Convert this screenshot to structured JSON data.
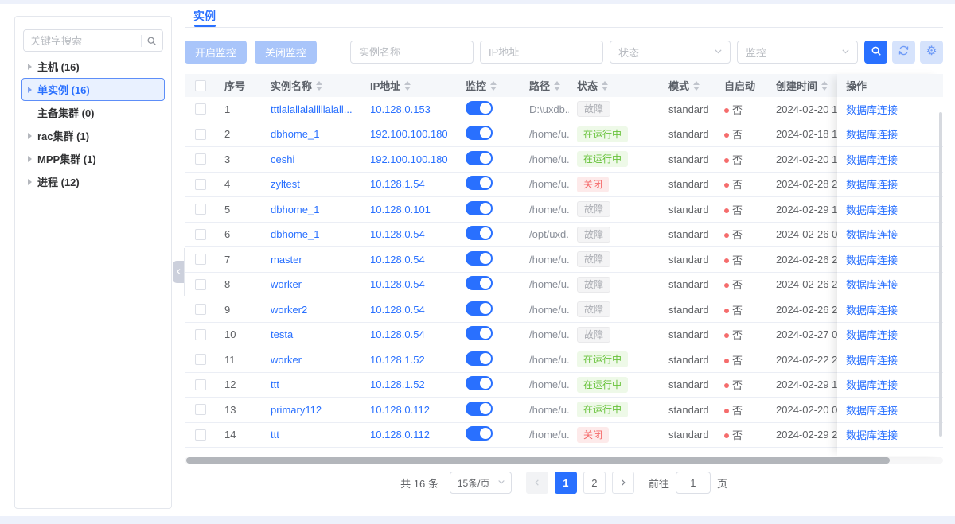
{
  "colors": {
    "accent": "#2970ff",
    "accent_soft": "#a9c5fa",
    "icon_btn_bg": "#d6e3fc",
    "header_bg": "#f5f7fa",
    "row_border": "#ebeef5",
    "selected_tree_bg": "#e9f1ff",
    "badge_info_text": "#aaacb2",
    "badge_success_text": "#67c23a",
    "badge_danger_text": "#f56c6c",
    "autostart_dot": "#f56c6c"
  },
  "sidebar": {
    "search_placeholder": "关键字搜索",
    "search_icon": "search-icon",
    "items": [
      {
        "key": "host",
        "label": "主机 (16)",
        "caret": true,
        "selected": false
      },
      {
        "key": "single-instance",
        "label": "单实例 (16)",
        "caret": true,
        "selected": true
      },
      {
        "key": "ha-cluster",
        "label": "主备集群 (0)",
        "caret": false,
        "selected": false
      },
      {
        "key": "rac-cluster",
        "label": "rac集群 (1)",
        "caret": true,
        "selected": false
      },
      {
        "key": "mpp-cluster",
        "label": "MPP集群 (1)",
        "caret": true,
        "selected": false
      },
      {
        "key": "process",
        "label": "进程 (12)",
        "caret": true,
        "selected": false
      }
    ]
  },
  "tabs": [
    {
      "label": "实例",
      "active": true
    }
  ],
  "toolbar": {
    "start_monitor": "开启监控",
    "stop_monitor": "关闭监控",
    "instance_name_placeholder": "实例名称",
    "ip_placeholder": "IP地址",
    "status_placeholder": "状态",
    "monitor_placeholder": "监控",
    "icons": [
      "search-icon",
      "refresh-icon",
      "gear-icon"
    ]
  },
  "table": {
    "columns": [
      {
        "label": "",
        "type": "checkbox",
        "sortable": false
      },
      {
        "label": "序号",
        "sortable": false
      },
      {
        "label": "实例名称",
        "sortable": true
      },
      {
        "label": "IP地址",
        "sortable": true
      },
      {
        "label": "监控",
        "sortable": true
      },
      {
        "label": "路径",
        "sortable": true
      },
      {
        "label": "状态",
        "sortable": true
      },
      {
        "label": "模式",
        "sortable": true
      },
      {
        "label": "自启动",
        "sortable": false
      },
      {
        "label": "创建时间",
        "sortable": true
      },
      {
        "label": "操作",
        "sortable": false,
        "fixed": true
      }
    ],
    "action_label": "数据库连接",
    "rows": [
      {
        "num": "1",
        "name": "tttlalallalalllllalall...",
        "ip": "10.128.0.153",
        "monitor": true,
        "path": "D:\\uxdb...",
        "status": "故障",
        "status_type": "info",
        "mode": "standard",
        "autostart": "否",
        "created": "2024-02-20 1"
      },
      {
        "num": "2",
        "name": "dbhome_1",
        "ip": "192.100.100.180",
        "monitor": true,
        "path": "/home/u...",
        "status": "在运行中",
        "status_type": "success",
        "mode": "standard",
        "autostart": "否",
        "created": "2024-02-18 1"
      },
      {
        "num": "3",
        "name": "ceshi",
        "ip": "192.100.100.180",
        "monitor": true,
        "path": "/home/u...",
        "status": "在运行中",
        "status_type": "success",
        "mode": "standard",
        "autostart": "否",
        "created": "2024-02-20 1"
      },
      {
        "num": "4",
        "name": "zyltest",
        "ip": "10.128.1.54",
        "monitor": true,
        "path": "/home/u...",
        "status": "关闭",
        "status_type": "danger",
        "mode": "standard",
        "autostart": "否",
        "created": "2024-02-28 2"
      },
      {
        "num": "5",
        "name": "dbhome_1",
        "ip": "10.128.0.101",
        "monitor": true,
        "path": "/home/u...",
        "status": "故障",
        "status_type": "info",
        "mode": "standard",
        "autostart": "否",
        "created": "2024-02-29 1"
      },
      {
        "num": "6",
        "name": "dbhome_1",
        "ip": "10.128.0.54",
        "monitor": true,
        "path": "/opt/uxd...",
        "status": "故障",
        "status_type": "info",
        "mode": "standard",
        "autostart": "否",
        "created": "2024-02-26 0"
      },
      {
        "num": "7",
        "name": "master",
        "ip": "10.128.0.54",
        "monitor": true,
        "path": "/home/u...",
        "status": "故障",
        "status_type": "info",
        "mode": "standard",
        "autostart": "否",
        "created": "2024-02-26 2"
      },
      {
        "num": "8",
        "name": "worker",
        "ip": "10.128.0.54",
        "monitor": true,
        "path": "/home/u...",
        "status": "故障",
        "status_type": "info",
        "mode": "standard",
        "autostart": "否",
        "created": "2024-02-26 2"
      },
      {
        "num": "9",
        "name": "worker2",
        "ip": "10.128.0.54",
        "monitor": true,
        "path": "/home/u...",
        "status": "故障",
        "status_type": "info",
        "mode": "standard",
        "autostart": "否",
        "created": "2024-02-26 2"
      },
      {
        "num": "10",
        "name": "testa",
        "ip": "10.128.0.54",
        "monitor": true,
        "path": "/home/u...",
        "status": "故障",
        "status_type": "info",
        "mode": "standard",
        "autostart": "否",
        "created": "2024-02-27 0"
      },
      {
        "num": "11",
        "name": "worker",
        "ip": "10.128.1.52",
        "monitor": true,
        "path": "/home/u...",
        "status": "在运行中",
        "status_type": "success",
        "mode": "standard",
        "autostart": "否",
        "created": "2024-02-22 2"
      },
      {
        "num": "12",
        "name": "ttt",
        "ip": "10.128.1.52",
        "monitor": true,
        "path": "/home/u...",
        "status": "在运行中",
        "status_type": "success",
        "mode": "standard",
        "autostart": "否",
        "created": "2024-02-29 1"
      },
      {
        "num": "13",
        "name": "primary112",
        "ip": "10.128.0.112",
        "monitor": true,
        "path": "/home/u...",
        "status": "在运行中",
        "status_type": "success",
        "mode": "standard",
        "autostart": "否",
        "created": "2024-02-20 0"
      },
      {
        "num": "14",
        "name": "ttt",
        "ip": "10.128.0.112",
        "monitor": true,
        "path": "/home/u...",
        "status": "关闭",
        "status_type": "danger",
        "mode": "standard",
        "autostart": "否",
        "created": "2024-02-29 2"
      }
    ]
  },
  "pagination": {
    "total": "共 16 条",
    "page_size": "15条/页",
    "pages": [
      "1",
      "2"
    ],
    "active_page": "1",
    "goto_label": "前往",
    "goto_value": "1",
    "goto_suffix": "页"
  }
}
